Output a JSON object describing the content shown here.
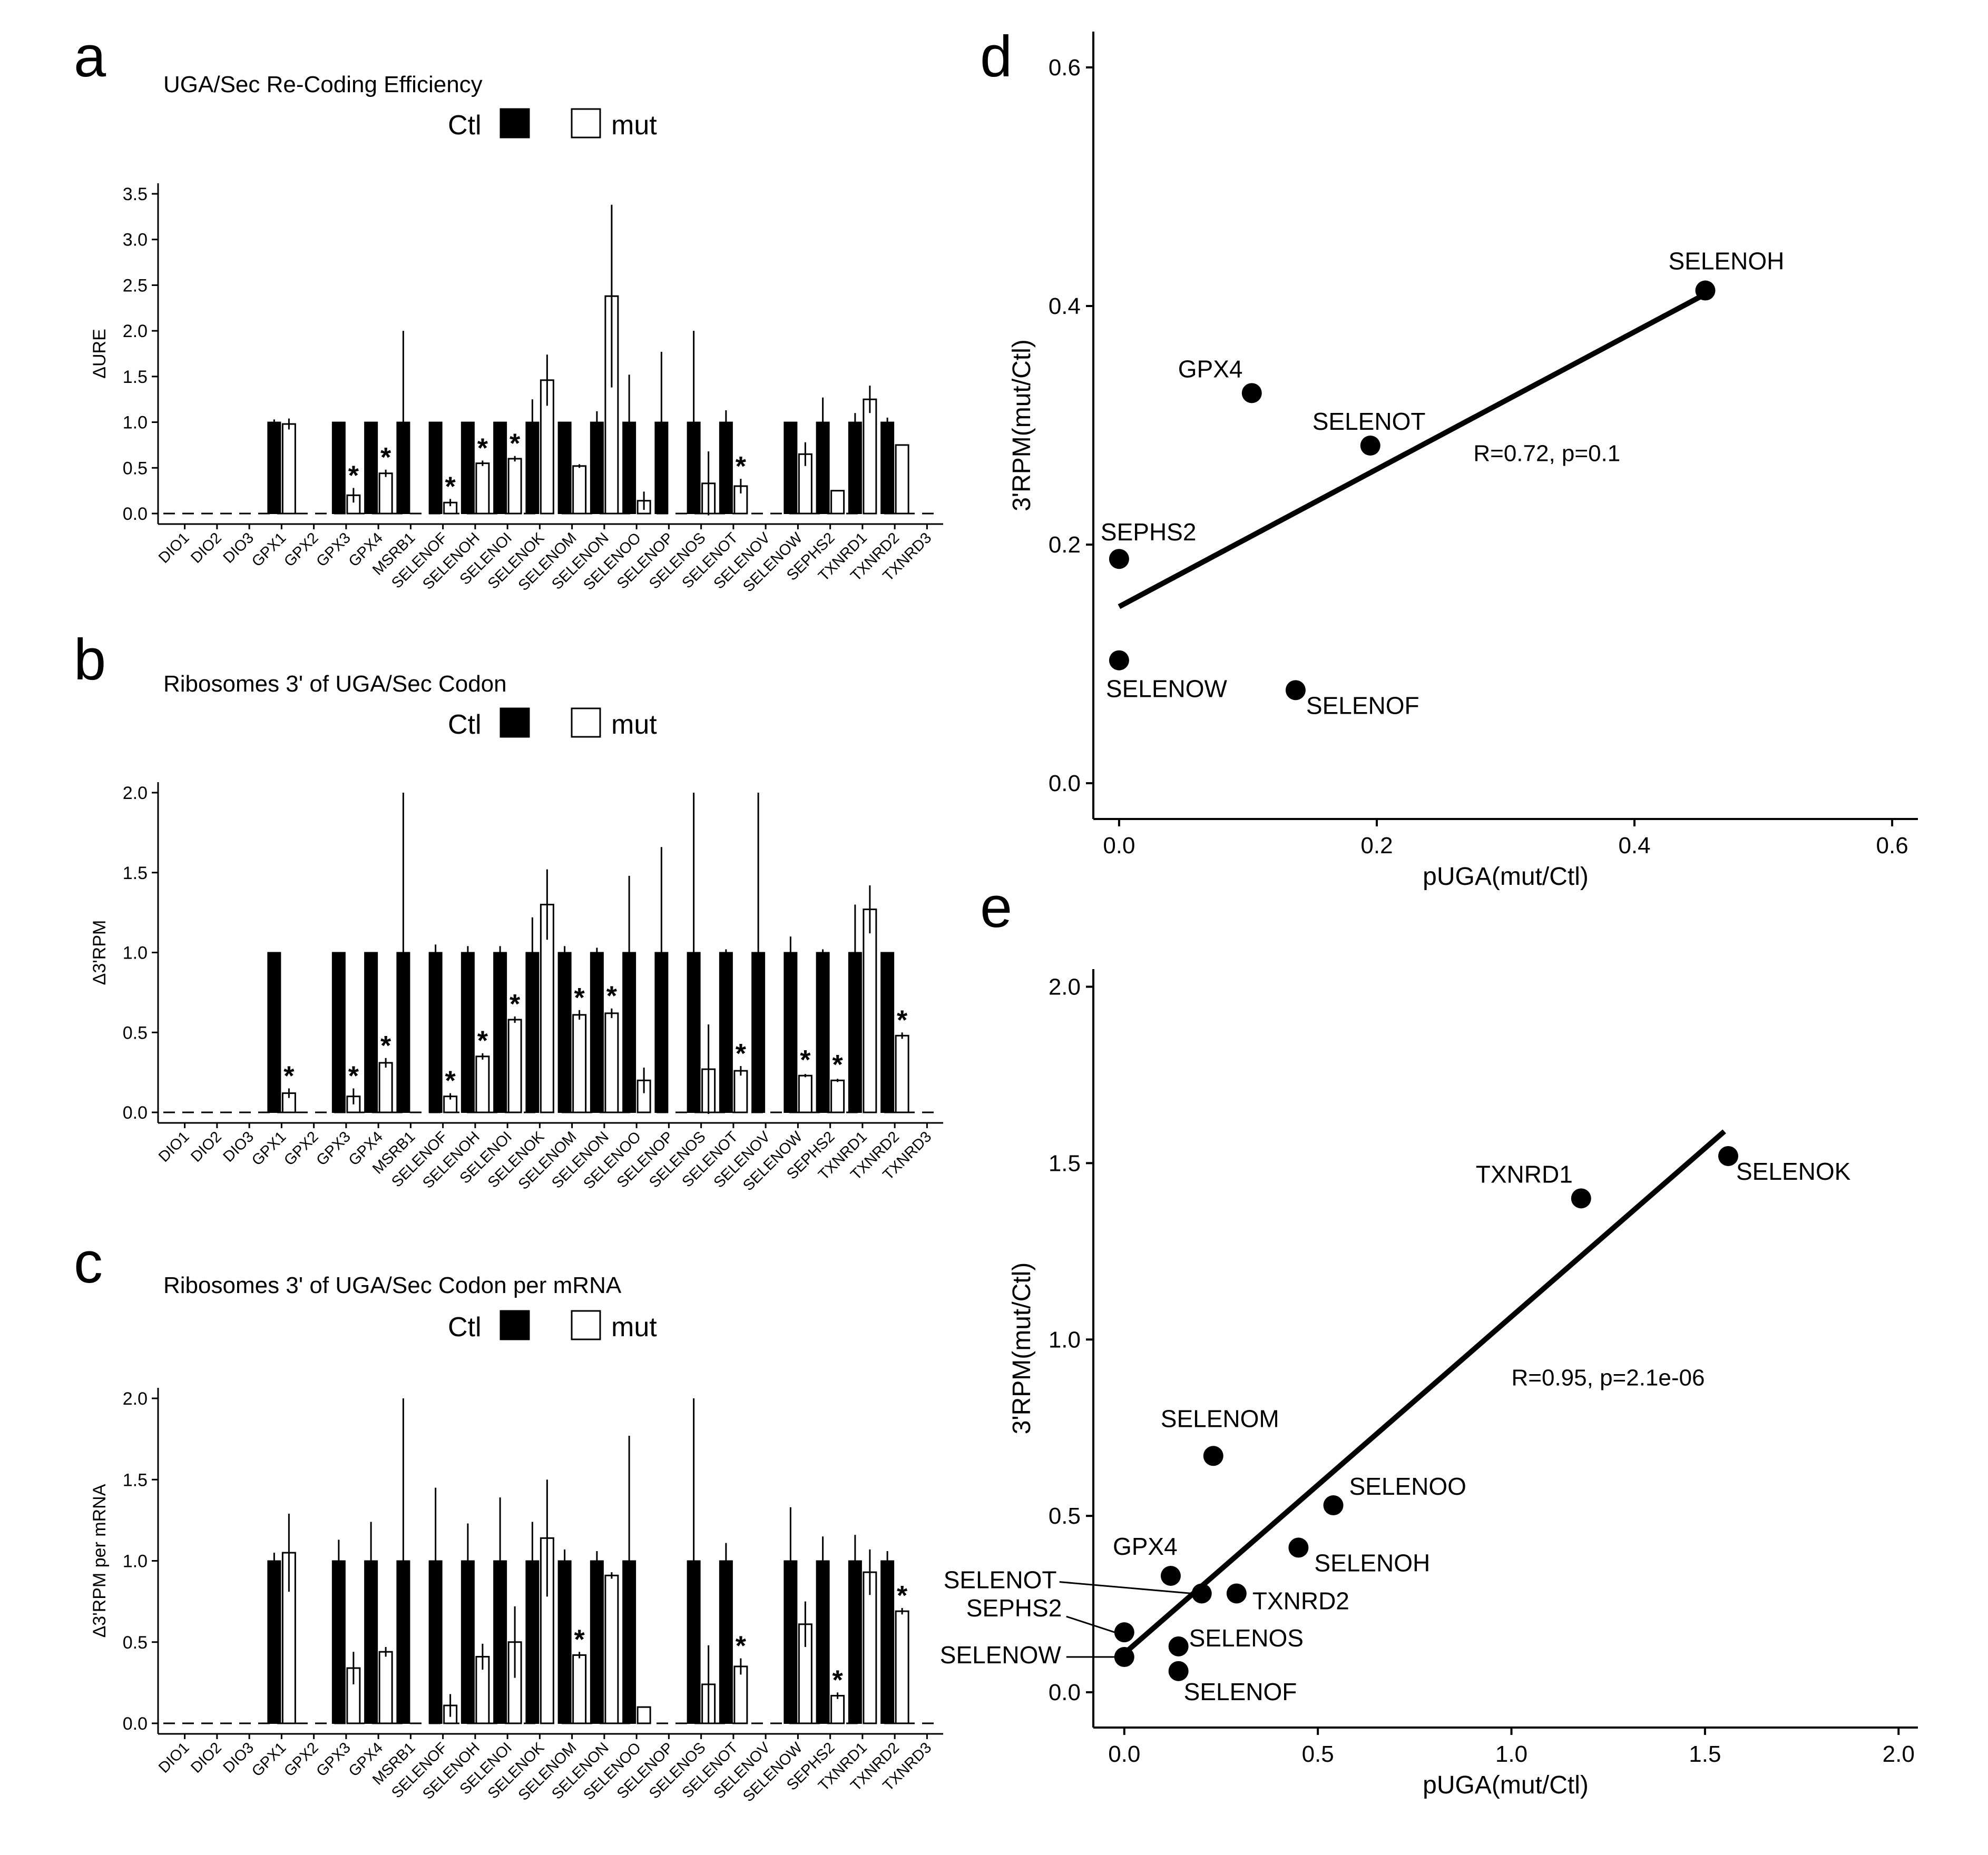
{
  "figure": {
    "panels": [
      "a",
      "b",
      "c",
      "d",
      "e"
    ]
  },
  "genes": [
    "DIO1",
    "DIO2",
    "DIO3",
    "GPX1",
    "GPX2",
    "GPX3",
    "GPX4",
    "MSRB1",
    "SELENOF",
    "SELENOH",
    "SELENOI",
    "SELENOK",
    "SELENOM",
    "SELENON",
    "SELENOO",
    "SELENOP",
    "SELENOS",
    "SELENOT",
    "SELENOV",
    "SELENOW",
    "SEPHS2",
    "TXNRD1",
    "TXNRD2",
    "TXNRD3"
  ],
  "legend": {
    "ctl": "Ctl",
    "mut": "mut"
  },
  "colors": {
    "ctl": "#000000",
    "mut": "#ffffff"
  },
  "chart_data": [
    {
      "panel": "a",
      "type": "bar",
      "title": "UGA/Sec Re-Coding Efficiency",
      "xlabel": "",
      "ylabel": "ΔURE",
      "ylim": [
        0,
        3.5
      ],
      "yticks": [
        "0.0",
        "0.5",
        "1.0",
        "1.5",
        "2.0",
        "2.5",
        "3.0",
        "3.5"
      ],
      "legend_position": "top-center",
      "series": [
        {
          "name": "Ctl",
          "values": [
            null,
            null,
            null,
            1,
            null,
            1,
            1,
            1,
            1,
            1,
            1,
            1,
            1,
            1,
            1,
            1,
            1,
            1,
            null,
            1,
            1,
            1,
            1,
            null
          ],
          "err": [
            0,
            0,
            0,
            0.03,
            0,
            0,
            0,
            1.0,
            0,
            0,
            0,
            0.25,
            0,
            0.12,
            0.52,
            0.77,
            1.0,
            0.13,
            0,
            0,
            0.27,
            0.1,
            0.05,
            0
          ]
        },
        {
          "name": "mut",
          "values": [
            null,
            null,
            null,
            0.98,
            null,
            0.2,
            0.44,
            null,
            0.12,
            0.55,
            0.6,
            1.46,
            0.52,
            2.38,
            0.14,
            null,
            0.33,
            0.3,
            null,
            0.65,
            0.25,
            1.25,
            0.75,
            null
          ],
          "err": [
            0,
            0,
            0,
            0.06,
            0,
            0.08,
            0.04,
            0,
            0.04,
            0.03,
            0.03,
            0.28,
            0.02,
            1.0,
            0.1,
            0,
            0.35,
            0.08,
            0,
            0.13,
            0,
            0.15,
            0,
            0
          ]
        }
      ],
      "significant": [
        "GPX3",
        "GPX4",
        "SELENOF",
        "SELENOH",
        "SELENOI",
        "SELENOT"
      ]
    },
    {
      "panel": "b",
      "type": "bar",
      "title": "Ribosomes 3' of UGA/Sec Codon",
      "xlabel": "",
      "ylabel": "Δ3'RPM",
      "ylim": [
        0,
        2.0
      ],
      "yticks": [
        "0.0",
        "0.5",
        "1.0",
        "1.5",
        "2.0"
      ],
      "legend_position": "top-center",
      "series": [
        {
          "name": "Ctl",
          "values": [
            null,
            null,
            null,
            1,
            null,
            1,
            1,
            1,
            1,
            1,
            1,
            1,
            1,
            1,
            1,
            1,
            1,
            1,
            1,
            1,
            1,
            1,
            1,
            null
          ],
          "err": [
            0,
            0,
            0,
            0,
            0,
            0,
            0,
            1.0,
            0.05,
            0.04,
            0.04,
            0.22,
            0.04,
            0.03,
            0.48,
            0.66,
            1.0,
            0.02,
            1.0,
            0.1,
            0.02,
            0.3,
            0,
            0
          ]
        },
        {
          "name": "mut",
          "values": [
            null,
            null,
            null,
            0.12,
            null,
            0.1,
            0.31,
            null,
            0.1,
            0.35,
            0.58,
            1.3,
            0.61,
            0.62,
            0.2,
            null,
            0.27,
            0.26,
            null,
            0.23,
            0.2,
            1.27,
            0.48,
            null
          ],
          "err": [
            0,
            0,
            0,
            0.03,
            0,
            0.05,
            0.03,
            0,
            0.02,
            0.02,
            0.02,
            0.22,
            0.03,
            0.03,
            0.08,
            0,
            0.28,
            0.03,
            0,
            0.01,
            0.01,
            0.15,
            0.02,
            0
          ]
        }
      ],
      "significant": [
        "GPX1",
        "GPX3",
        "GPX4",
        "SELENOF",
        "SELENOH",
        "SELENOI",
        "SELENOM",
        "SELENON",
        "SELENOT",
        "SELENOW",
        "SEPHS2",
        "TXNRD2"
      ]
    },
    {
      "panel": "c",
      "type": "bar",
      "title": "Ribosomes 3' of UGA/Sec Codon per mRNA",
      "xlabel": "",
      "ylabel": "Δ3'RPM per mRNA",
      "ylim": [
        0,
        2.0
      ],
      "yticks": [
        "0.0",
        "0.5",
        "1.0",
        "1.5",
        "2.0"
      ],
      "legend_position": "top-center",
      "series": [
        {
          "name": "Ctl",
          "values": [
            null,
            null,
            null,
            1,
            null,
            1,
            1,
            1,
            1,
            1,
            1,
            1,
            1,
            1,
            1,
            null,
            1,
            1,
            null,
            1,
            1,
            1,
            1,
            null
          ],
          "err": [
            0,
            0,
            0,
            0.05,
            0,
            0.13,
            0.24,
            1.0,
            0.45,
            0.23,
            0.39,
            0.24,
            0.07,
            0.06,
            0.77,
            0,
            1.0,
            0.11,
            0,
            0.33,
            0.15,
            0.16,
            0.06,
            0
          ]
        },
        {
          "name": "mut",
          "values": [
            null,
            null,
            null,
            1.05,
            null,
            0.34,
            0.44,
            null,
            0.11,
            0.41,
            0.5,
            1.14,
            0.42,
            0.91,
            0.1,
            null,
            0.24,
            0.35,
            null,
            0.61,
            0.17,
            0.93,
            0.69,
            null
          ],
          "err": [
            0,
            0,
            0,
            0.24,
            0,
            0.1,
            0.03,
            0,
            0.07,
            0.08,
            0.22,
            0.36,
            0.02,
            0.02,
            0,
            0,
            0.24,
            0.05,
            0,
            0.14,
            0.02,
            0.14,
            0.02,
            0
          ]
        }
      ],
      "significant": [
        "SELENOM",
        "SELENOT",
        "SEPHS2",
        "TXNRD2"
      ]
    },
    {
      "panel": "d",
      "type": "scatter",
      "title": "",
      "xlabel": "pUGA(mut/Ctl)",
      "ylabel": "3'RPM(mut/Ctl)",
      "xlim": [
        -0.02,
        0.62
      ],
      "ylim": [
        -0.03,
        0.63
      ],
      "xticks": [
        "0.0",
        "0.2",
        "0.4",
        "0.6"
      ],
      "yticks": [
        "0.0",
        "0.2",
        "0.4",
        "0.6"
      ],
      "annotation": "R=0.72, p=0.1",
      "fit": [
        [
          0.0,
          0.148
        ],
        [
          0.455,
          0.41
        ]
      ],
      "points": [
        {
          "label": "SELENOH",
          "x": 0.455,
          "y": 0.413
        },
        {
          "label": "GPX4",
          "x": 0.103,
          "y": 0.327
        },
        {
          "label": "SELENOT",
          "x": 0.195,
          "y": 0.283
        },
        {
          "label": "SEPHS2",
          "x": 0.0,
          "y": 0.188
        },
        {
          "label": "SELENOW",
          "x": 0.0,
          "y": 0.103
        },
        {
          "label": "SELENOF",
          "x": 0.137,
          "y": 0.078
        }
      ]
    },
    {
      "panel": "e",
      "type": "scatter",
      "title": "",
      "xlabel": "pUGA(mut/Ctl)",
      "ylabel": "3'RPM(mut/Ctl)",
      "xlim": [
        -0.08,
        2.05
      ],
      "ylim": [
        -0.1,
        2.05
      ],
      "xticks": [
        "0.0",
        "0.5",
        "1.0",
        "1.5",
        "2.0"
      ],
      "yticks": [
        "0.0",
        "0.5",
        "1.0",
        "1.5",
        "2.0"
      ],
      "annotation": "R=0.95, p=2.1e-06",
      "fit": [
        [
          0.0,
          0.11
        ],
        [
          1.55,
          1.59
        ]
      ],
      "points": [
        {
          "label": "SELENOK",
          "x": 1.56,
          "y": 1.52
        },
        {
          "label": "TXNRD1",
          "x": 1.18,
          "y": 1.4
        },
        {
          "label": "SELENOM",
          "x": 0.23,
          "y": 0.67
        },
        {
          "label": "SELENOO",
          "x": 0.54,
          "y": 0.53
        },
        {
          "label": "SELENOH",
          "x": 0.45,
          "y": 0.41
        },
        {
          "label": "GPX4",
          "x": 0.12,
          "y": 0.33
        },
        {
          "label": "SELENOT",
          "x": 0.2,
          "y": 0.28
        },
        {
          "label": "TXNRD2",
          "x": 0.29,
          "y": 0.28
        },
        {
          "label": "SEPHS2",
          "x": 0.0,
          "y": 0.17
        },
        {
          "label": "SELENOS",
          "x": 0.14,
          "y": 0.13
        },
        {
          "label": "SELENOW",
          "x": 0.0,
          "y": 0.1
        },
        {
          "label": "SELENOF",
          "x": 0.14,
          "y": 0.06
        }
      ]
    }
  ]
}
